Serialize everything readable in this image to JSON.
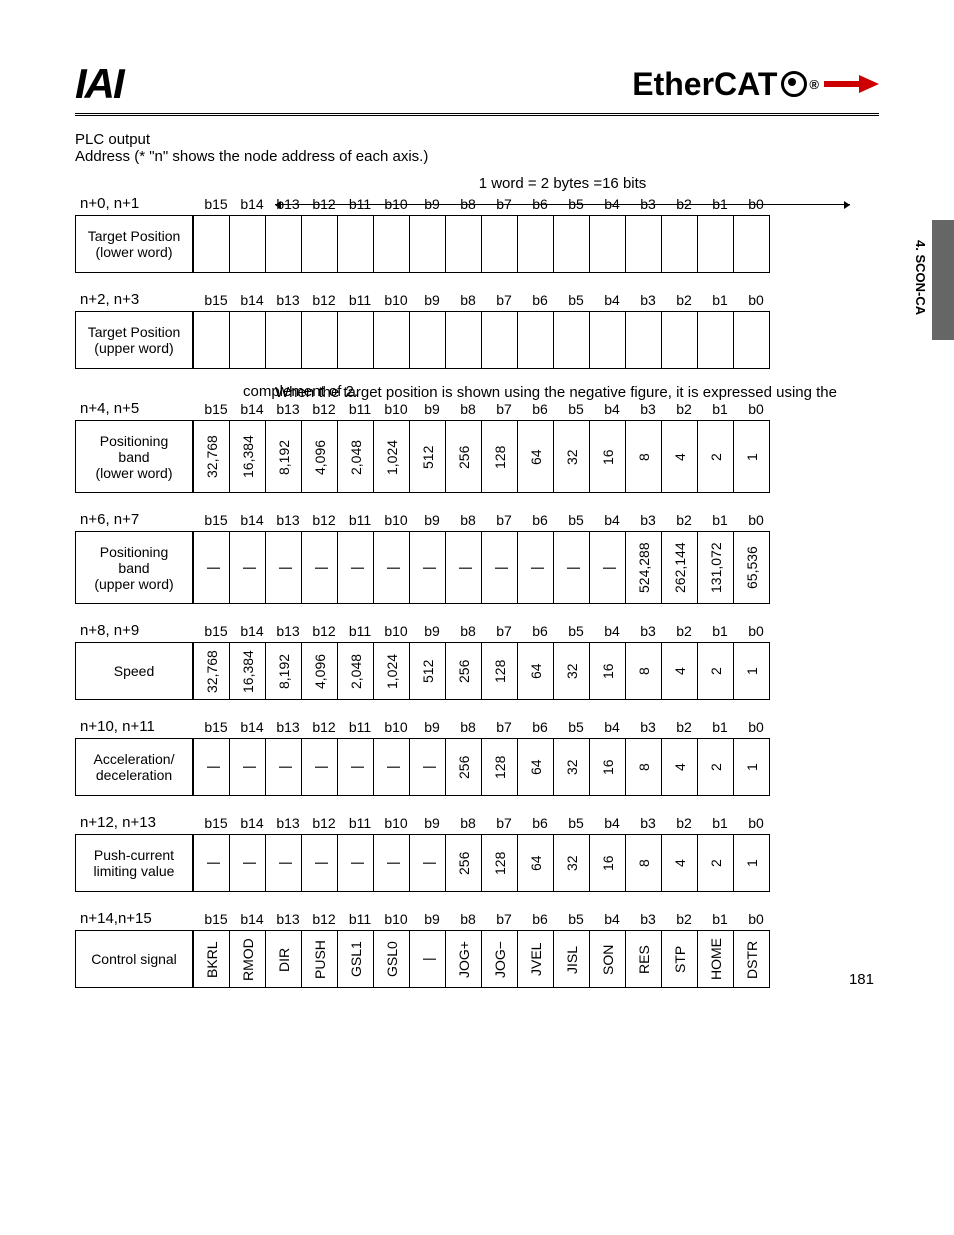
{
  "header": {
    "logo_left": "IAI",
    "logo_right_a": "Ether",
    "logo_right_b": "CAT"
  },
  "side_tab_text": "4. SCON-CA",
  "page_number": "181",
  "section": {
    "title": "PLC output",
    "address_note": "Address (* \"n\" shows the node address of each axis.)",
    "word_note": "1 word = 2 bytes =16 bits",
    "complement_note_1": "When the target position is shown using the negative figure, it is expressed using the",
    "complement_note_2": "complement of 2."
  },
  "bits": [
    "b15",
    "b14",
    "b13",
    "b12",
    "b11",
    "b10",
    "b9",
    "b8",
    "b7",
    "b6",
    "b5",
    "b4",
    "b3",
    "b2",
    "b1",
    "b0"
  ],
  "registers": [
    {
      "addr": "n+0, n+1",
      "label": "Target Position\n(lower word)",
      "height": "h40",
      "cells": [
        "",
        "",
        "",
        "",
        "",
        "",
        "",
        "",
        "",
        "",
        "",
        "",
        "",
        "",
        "",
        ""
      ]
    },
    {
      "addr": "n+2, n+3",
      "label": "Target Position\n(upper word)",
      "height": "h40",
      "cells": [
        "",
        "",
        "",
        "",
        "",
        "",
        "",
        "",
        "",
        "",
        "",
        "",
        "",
        "",
        "",
        ""
      ]
    },
    {
      "addr": "n+4, n+5",
      "label": "Positioning\nband\n(lower word)",
      "height": "h55",
      "cells": [
        "32,768",
        "16,384",
        "8,192",
        "4,096",
        "2,048",
        "1,024",
        "512",
        "256",
        "128",
        "64",
        "32",
        "16",
        "8",
        "4",
        "2",
        "1"
      ]
    },
    {
      "addr": "n+6, n+7",
      "label": "Positioning\nband\n(upper word)",
      "height": "h55",
      "cells": [
        "|",
        "|",
        "|",
        "|",
        "|",
        "|",
        "|",
        "|",
        "|",
        "|",
        "|",
        "|",
        "524,288",
        "262,144",
        "131,072",
        "65,536"
      ]
    },
    {
      "addr": "n+8, n+9",
      "label": "Speed",
      "height": "h40",
      "cells": [
        "32,768",
        "16,384",
        "8,192",
        "4,096",
        "2,048",
        "1,024",
        "512",
        "256",
        "128",
        "64",
        "32",
        "16",
        "8",
        "4",
        "2",
        "1"
      ]
    },
    {
      "addr": "n+10, n+11",
      "label": "Acceleration/\ndeceleration",
      "height": "h40",
      "cells": [
        "|",
        "|",
        "|",
        "|",
        "|",
        "|",
        "|",
        "256",
        "128",
        "64",
        "32",
        "16",
        "8",
        "4",
        "2",
        "1"
      ]
    },
    {
      "addr": "n+12, n+13",
      "label": "Push-current\nlimiting value",
      "height": "h40",
      "cells": [
        "|",
        "|",
        "|",
        "|",
        "|",
        "|",
        "|",
        "256",
        "128",
        "64",
        "32",
        "16",
        "8",
        "4",
        "2",
        "1"
      ]
    },
    {
      "addr": "n+14,n+15",
      "label": "Control signal",
      "height": "h40",
      "cells": [
        "BKRL",
        "RMOD",
        "DIR",
        "PUSH",
        "GSL1",
        "GSL0",
        "|",
        "JOG+",
        "JOG−",
        "JVEL",
        "JISL",
        "SON",
        "RES",
        "STP",
        "HOME",
        "DSTR"
      ]
    }
  ]
}
